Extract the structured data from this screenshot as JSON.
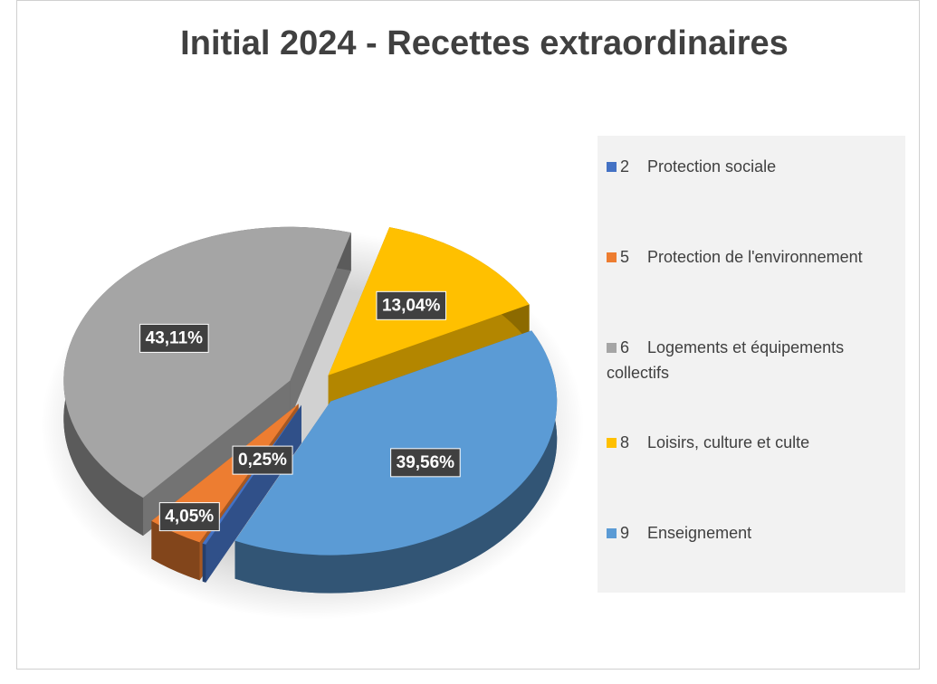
{
  "chart_data": {
    "type": "pie3d",
    "title": "Initial 2024 - Recettes extraordinaires",
    "categories": [
      "2    Protection sociale",
      "5    Protection de l'environnement",
      "6    Logements et équipements collectifs",
      "8    Loisirs, culture et culte",
      "9    Enseignement"
    ],
    "values": [
      0.25,
      4.05,
      43.11,
      13.04,
      39.56
    ],
    "value_labels": [
      "0,25%",
      "4,05%",
      "43,11%",
      "13,04%",
      "39,56%"
    ],
    "colors": [
      "#4472c4",
      "#ed7d31",
      "#a5a5a5",
      "#ffc000",
      "#5b9bd5"
    ],
    "legend": "right"
  }
}
